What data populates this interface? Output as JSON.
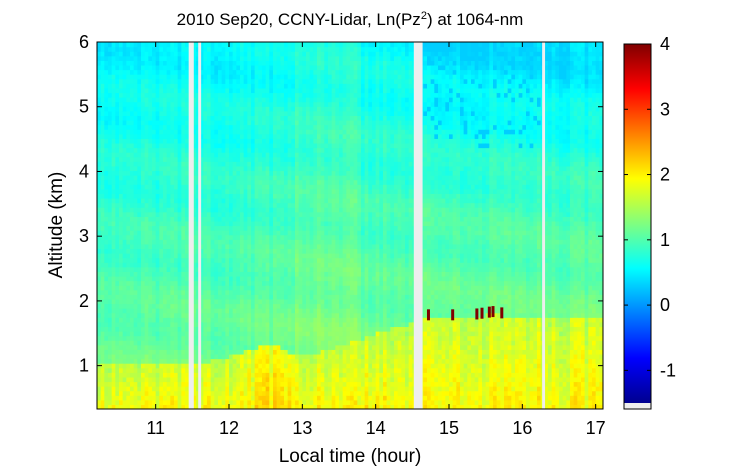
{
  "chart_data": {
    "type": "heatmap",
    "title": "2010 Sep20, CCNY-Lidar, Ln(Pz",
    "title_sup": "2",
    "title_suffix": ") at 1064-nm",
    "xlabel": "Local time (hour)",
    "ylabel": "Altitude (km)",
    "xlim": [
      10.2,
      17.1
    ],
    "ylim": [
      0.33,
      6.0
    ],
    "xticks": [
      11,
      12,
      13,
      14,
      15,
      16,
      17
    ],
    "yticks": [
      1,
      2,
      3,
      4,
      5,
      6
    ],
    "colorbar": {
      "range": [
        -1.5,
        4
      ],
      "ticks": [
        -1,
        0,
        1,
        2,
        3,
        4
      ],
      "colormap": "jet"
    },
    "data_gaps_hours": [
      [
        11.45,
        11.52
      ],
      [
        11.58,
        11.62
      ],
      [
        14.52,
        14.64
      ],
      [
        16.27,
        16.31
      ]
    ],
    "boundary_layer_top_km": {
      "x": [
        10.2,
        10.6,
        11.0,
        11.4,
        11.7,
        12.0,
        12.3,
        12.6,
        12.9,
        13.2,
        13.5,
        13.8,
        14.1,
        14.5,
        14.7,
        15.0,
        15.3,
        15.6,
        15.9,
        16.2,
        16.5,
        16.8,
        17.1
      ],
      "y": [
        1.05,
        1.05,
        1.05,
        1.05,
        1.05,
        1.15,
        1.25,
        1.35,
        1.15,
        1.2,
        1.3,
        1.4,
        1.55,
        1.65,
        1.75,
        1.75,
        1.75,
        1.8,
        1.75,
        1.75,
        1.75,
        1.75,
        1.75
      ]
    },
    "value_levels": {
      "near_surface_min": 1.6,
      "near_surface_max": 2.3,
      "free_troposphere_min": 0.3,
      "free_troposphere_max": 1.4,
      "spike_max": 4.0
    }
  }
}
